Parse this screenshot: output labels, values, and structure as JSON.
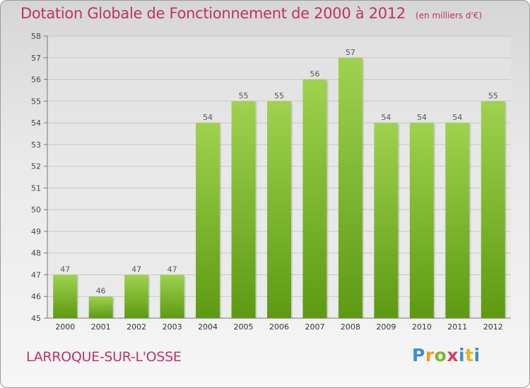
{
  "header": {
    "title": "Dotation Globale de Fonctionnement de 2000 à 2012",
    "unit": "(en milliers d'€)"
  },
  "footer": {
    "commune": "LARROQUE-SUR-L'OSSE",
    "logo": "Proxiti"
  },
  "colors": {
    "title": "#c0306a",
    "bar_top": "#9fd24e",
    "bar_bottom": "#5d9a12",
    "grid": "#c8c8c8"
  },
  "chart_data": {
    "type": "bar",
    "title": "Dotation Globale de Fonctionnement de 2000 à 2012",
    "subtitle": "(en milliers d'€)",
    "xlabel": "",
    "ylabel": "",
    "categories": [
      "2000",
      "2001",
      "2002",
      "2003",
      "2004",
      "2005",
      "2006",
      "2007",
      "2008",
      "2009",
      "2010",
      "2011",
      "2012"
    ],
    "values": [
      47,
      46,
      47,
      47,
      54,
      55,
      55,
      56,
      57,
      54,
      54,
      54,
      55
    ],
    "ylim": [
      45,
      58
    ],
    "yticks": [
      45,
      46,
      47,
      48,
      49,
      50,
      51,
      52,
      53,
      54,
      55,
      56,
      57,
      58
    ],
    "grid": true,
    "legend": "none"
  }
}
